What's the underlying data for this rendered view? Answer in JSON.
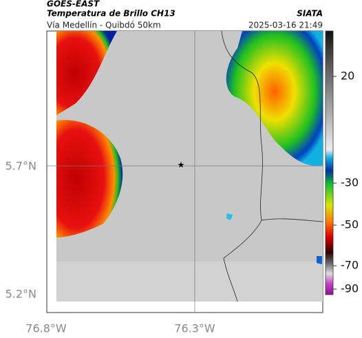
{
  "header": {
    "satellite": "GOES-EAST",
    "product": "Temperatura de Brillo CH13",
    "source": "SIATA",
    "route": "Vía Medellín - Quibdó 50km",
    "timestamp": "2025-03-16 21:49"
  },
  "map": {
    "lat_labels": [
      "5.7°N",
      "5.2°N"
    ],
    "lon_labels": [
      "76.8°W",
      "76.3°W"
    ]
  },
  "colorbar": {
    "tick_labels": [
      "20",
      "-30",
      "-50",
      "-70",
      "-90"
    ]
  }
}
